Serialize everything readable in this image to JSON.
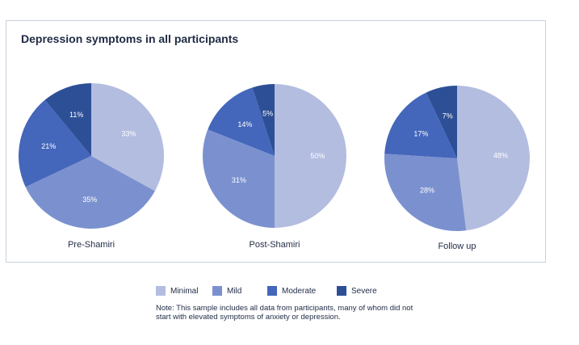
{
  "chart_data": {
    "type": "pie",
    "title": "Depression symptoms in all participants",
    "legend_placement": "bottom",
    "categories": [
      "Minimal",
      "Mild",
      "Moderate",
      "Severe"
    ],
    "colors": [
      "#b3bde0",
      "#7b91cf",
      "#4466bb",
      "#2d4f96"
    ],
    "charts": [
      {
        "name": "Pre-Shamiri",
        "values": [
          33,
          35,
          21,
          11
        ],
        "labels": [
          "33%",
          "35%",
          "21%",
          "11%"
        ]
      },
      {
        "name": "Post-Shamiri",
        "values": [
          50,
          31,
          14,
          5
        ],
        "labels": [
          "50%",
          "31%",
          "14%",
          "5%"
        ]
      },
      {
        "name": "Follow up",
        "values": [
          48,
          28,
          17,
          7
        ],
        "labels": [
          "48%",
          "28%",
          "17%",
          "7%"
        ]
      }
    ]
  },
  "note": "Note: This sample includes all data from participants, many of whom did not start with elevated symptoms of anxiety or depression."
}
